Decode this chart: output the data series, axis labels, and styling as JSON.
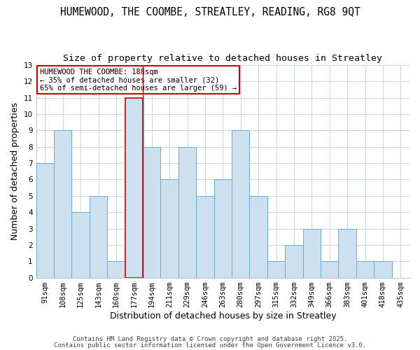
{
  "title": "HUMEWOOD, THE COOMBE, STREATLEY, READING, RG8 9QT",
  "subtitle": "Size of property relative to detached houses in Streatley",
  "xlabel": "Distribution of detached houses by size in Streatley",
  "ylabel": "Number of detached properties",
  "bar_labels": [
    "91sqm",
    "108sqm",
    "125sqm",
    "143sqm",
    "160sqm",
    "177sqm",
    "194sqm",
    "211sqm",
    "229sqm",
    "246sqm",
    "263sqm",
    "280sqm",
    "297sqm",
    "315sqm",
    "332sqm",
    "349sqm",
    "366sqm",
    "383sqm",
    "401sqm",
    "418sqm",
    "435sqm"
  ],
  "bar_values": [
    7,
    9,
    4,
    5,
    1,
    11,
    8,
    6,
    8,
    5,
    6,
    9,
    5,
    1,
    2,
    3,
    1,
    3,
    1,
    1,
    0
  ],
  "bar_color": "#cce0f0",
  "bar_edge_color": "#6aaad4",
  "highlight_bar_index": 5,
  "highlight_bar_edge_color": "#cc0000",
  "vline_index": 5,
  "ylim": [
    0,
    13
  ],
  "yticks": [
    0,
    1,
    2,
    3,
    4,
    5,
    6,
    7,
    8,
    9,
    10,
    11,
    12,
    13
  ],
  "grid_color": "#c5d5e5",
  "background_color": "#ffffff",
  "annotation_title": "HUMEWOOD THE COOMBE: 188sqm",
  "annotation_line1": "← 35% of detached houses are smaller (32)",
  "annotation_line2": "65% of semi-detached houses are larger (59) →",
  "annotation_box_edge": "#cc0000",
  "footer_line1": "Contains HM Land Registry data © Crown copyright and database right 2025.",
  "footer_line2": "Contains public sector information licensed under the Open Government Licence v3.0.",
  "title_fontsize": 10.5,
  "subtitle_fontsize": 9.5,
  "axis_label_fontsize": 9,
  "tick_fontsize": 7.5,
  "annotation_fontsize": 7.5,
  "footer_fontsize": 6.5
}
